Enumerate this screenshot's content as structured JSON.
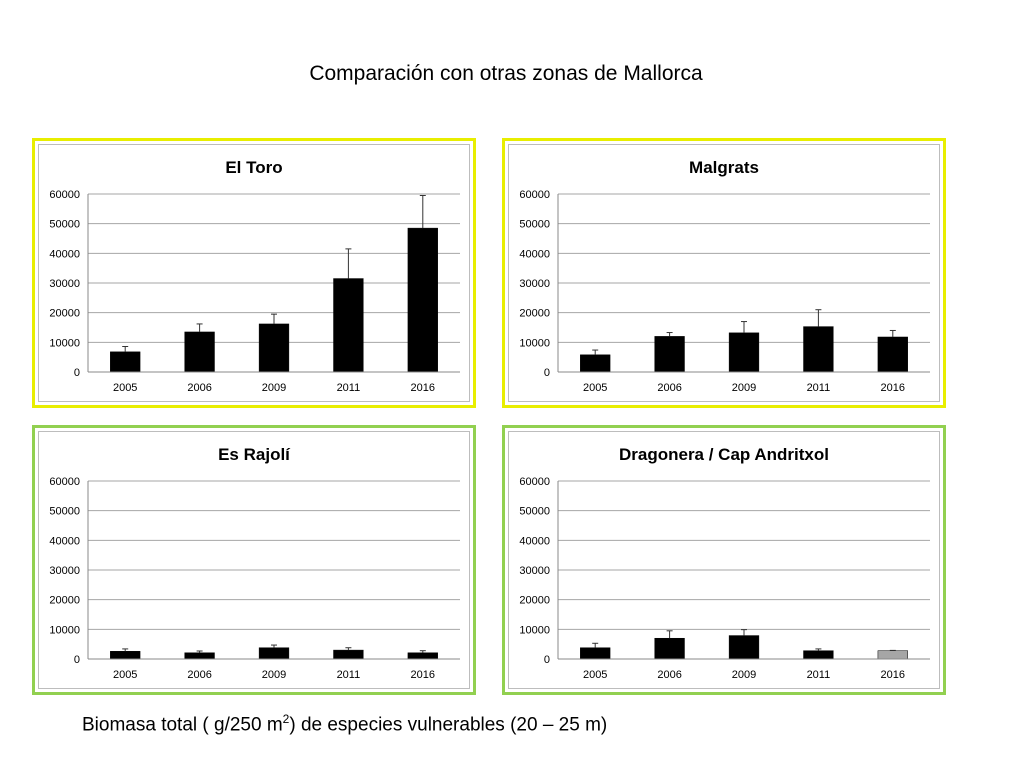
{
  "slide": {
    "title": "Comparación con otras zonas de Mallorca",
    "caption_before": "Biomasa total ( g/250 m",
    "caption_sup": "2",
    "caption_after": ") de especies vulnerables  (20 – 25 m)"
  },
  "colors": {
    "yellow_border": "#e8ee00",
    "green_border": "#92d050",
    "bar_black": "#000000",
    "bar_grey": "#a6a6a6"
  },
  "chart_data": [
    {
      "type": "bar",
      "title": "El Toro",
      "categories": [
        "2005",
        "2006",
        "2009",
        "2011",
        "2016"
      ],
      "values": [
        6800,
        13500,
        16200,
        31500,
        48500
      ],
      "errors": [
        1800,
        2700,
        3300,
        10000,
        11000
      ],
      "bar_colors": [
        "#000000",
        "#000000",
        "#000000",
        "#000000",
        "#000000"
      ],
      "ylim": [
        0,
        60000
      ],
      "yticks": [
        "0",
        "10000",
        "20000",
        "30000",
        "40000",
        "50000",
        "60000"
      ],
      "grid": true,
      "border": "yellow"
    },
    {
      "type": "bar",
      "title": "Malgrats",
      "categories": [
        "2005",
        "2006",
        "2009",
        "2011",
        "2016"
      ],
      "values": [
        5800,
        12000,
        13200,
        15300,
        11800
      ],
      "errors": [
        1600,
        1300,
        3800,
        5700,
        2200
      ],
      "bar_colors": [
        "#000000",
        "#000000",
        "#000000",
        "#000000",
        "#000000"
      ],
      "ylim": [
        0,
        60000
      ],
      "yticks": [
        "0",
        "10000",
        "20000",
        "30000",
        "40000",
        "50000",
        "60000"
      ],
      "grid": true,
      "border": "yellow"
    },
    {
      "type": "bar",
      "title": "Es Rajolí",
      "categories": [
        "2005",
        "2006",
        "2009",
        "2011",
        "2016"
      ],
      "values": [
        2600,
        2100,
        3800,
        3000,
        2100
      ],
      "errors": [
        800,
        600,
        900,
        800,
        700
      ],
      "bar_colors": [
        "#000000",
        "#000000",
        "#000000",
        "#000000",
        "#000000"
      ],
      "ylim": [
        0,
        60000
      ],
      "yticks": [
        "0",
        "10000",
        "20000",
        "30000",
        "40000",
        "50000",
        "60000"
      ],
      "grid": true,
      "border": "green"
    },
    {
      "type": "bar",
      "title": "Dragonera / Cap Andritxol",
      "categories": [
        "2005",
        "2006",
        "2009",
        "2011",
        "2016"
      ],
      "values": [
        3800,
        7000,
        7900,
        2800,
        2800
      ],
      "errors": [
        1500,
        2500,
        2000,
        600,
        100
      ],
      "bar_colors": [
        "#000000",
        "#000000",
        "#000000",
        "#000000",
        "#a6a6a6"
      ],
      "ylim": [
        0,
        60000
      ],
      "yticks": [
        "0",
        "10000",
        "20000",
        "30000",
        "40000",
        "50000",
        "60000"
      ],
      "grid": true,
      "border": "green"
    }
  ]
}
